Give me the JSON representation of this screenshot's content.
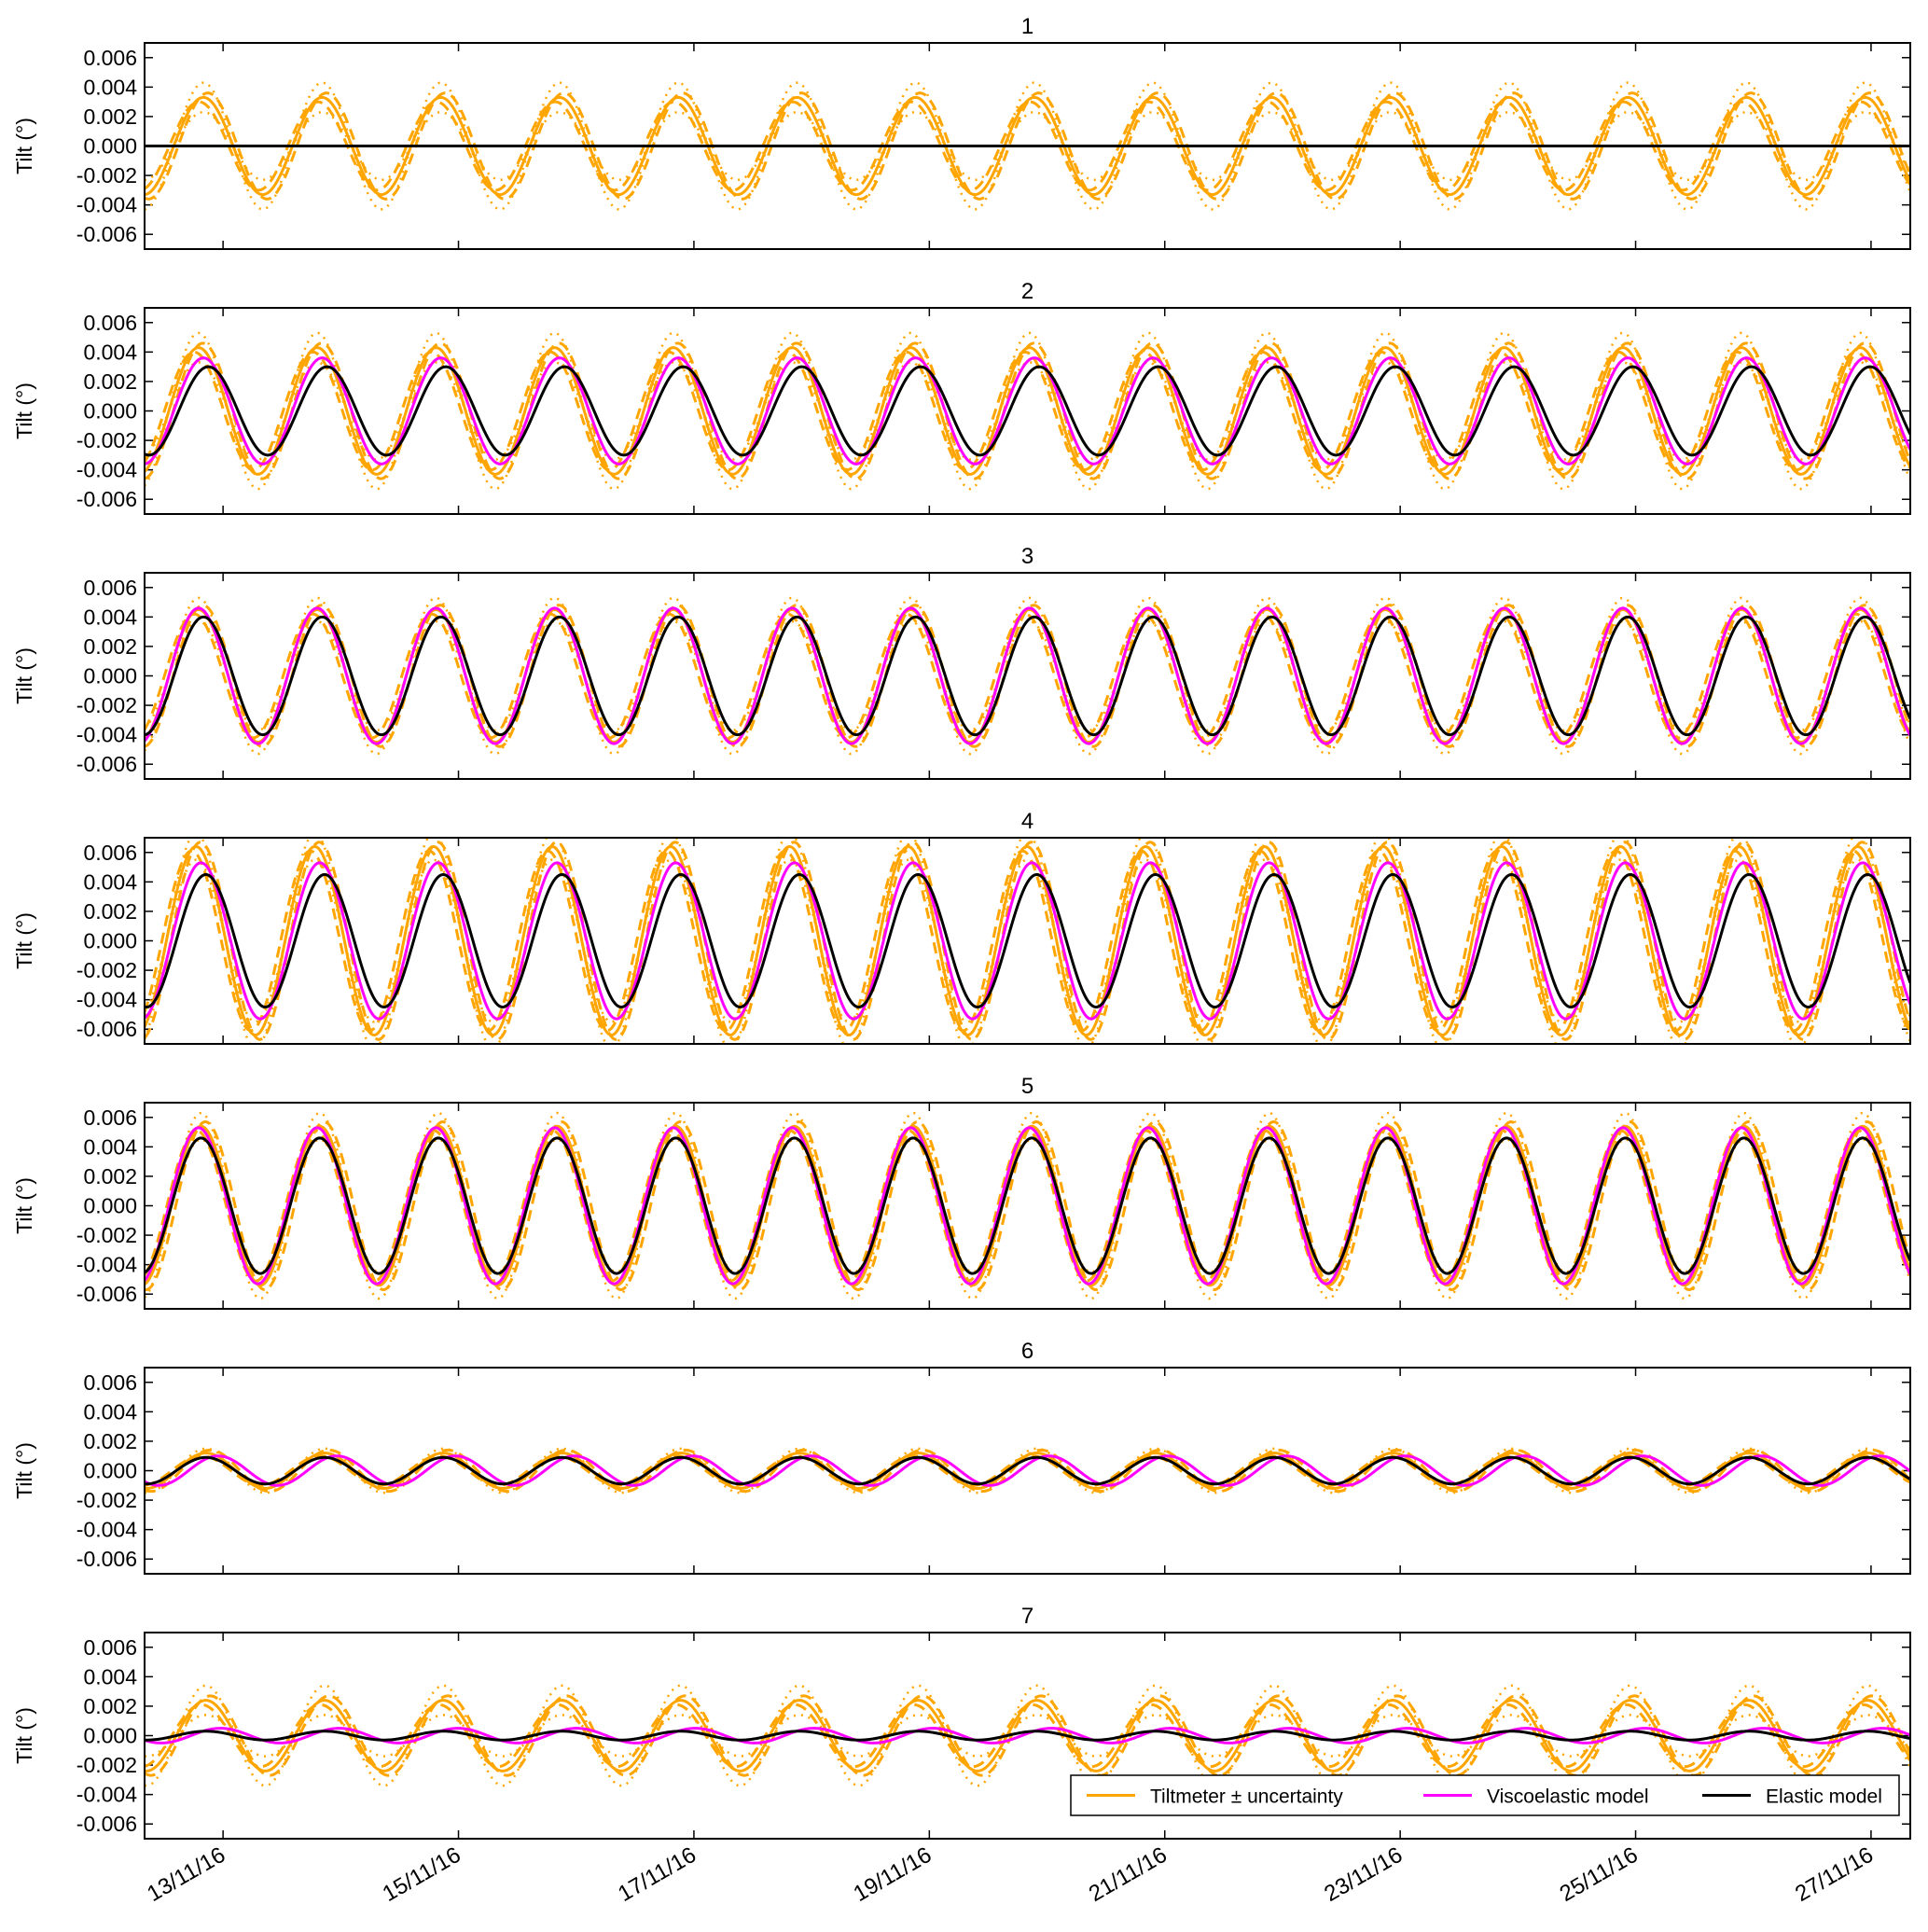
{
  "colors": {
    "tiltmeter": "#FFA500",
    "viscoelastic": "#FF00FF",
    "elastic": "#000000"
  },
  "legend": {
    "placement": "bottom-right of panel 7",
    "entries": [
      "Tiltmeter ± uncertainty",
      "Viscoelastic model",
      "Elastic model"
    ]
  },
  "xaxis": {
    "tick_labels": [
      "13/11/16",
      "15/11/16",
      "17/11/16",
      "19/11/16",
      "21/11/16",
      "23/11/16",
      "25/11/16",
      "27/11/16"
    ]
  },
  "chart_data": [
    {
      "type": "line",
      "title": "1",
      "ylabel": "Tilt (°)",
      "ylim": [
        -0.007,
        0.007
      ],
      "yticks": [
        "0.006",
        "0.004",
        "0.002",
        "0.000",
        "-0.002",
        "-0.004",
        "-0.006"
      ],
      "xlim": [
        "2016-11-12 08:00",
        "2016-11-27 08:00"
      ],
      "period_hours": 24.2,
      "series": [
        {
          "name": "Tiltmeter ± uncertainty",
          "amplitude": 0.0033,
          "uncertainty": [
            0.0003,
            0.001
          ],
          "peak_time": "2016-11-12 20:00"
        },
        {
          "name": "Elastic model",
          "amplitude": 0.0,
          "peak_time": "2016-11-12 20:00"
        }
      ]
    },
    {
      "type": "line",
      "title": "2",
      "ylabel": "Tilt (°)",
      "ylim": [
        -0.007,
        0.007
      ],
      "yticks": [
        "0.006",
        "0.004",
        "0.002",
        "0.000",
        "-0.002",
        "-0.004",
        "-0.006"
      ],
      "xlim": [
        "2016-11-12 08:00",
        "2016-11-27 08:00"
      ],
      "period_hours": 24.2,
      "series": [
        {
          "name": "Tiltmeter ± uncertainty",
          "amplitude": 0.0043,
          "uncertainty": [
            0.0003,
            0.001
          ],
          "peak_time": "2016-11-12 19:00"
        },
        {
          "name": "Viscoelastic model",
          "amplitude": 0.0036,
          "peak_time": "2016-11-12 20:00"
        },
        {
          "name": "Elastic model",
          "amplitude": 0.003,
          "peak_time": "2016-11-12 21:00"
        }
      ]
    },
    {
      "type": "line",
      "title": "3",
      "ylabel": "Tilt (°)",
      "ylim": [
        -0.007,
        0.007
      ],
      "yticks": [
        "0.006",
        "0.004",
        "0.002",
        "0.000",
        "-0.002",
        "-0.004",
        "-0.006"
      ],
      "xlim": [
        "2016-11-12 08:00",
        "2016-11-27 08:00"
      ],
      "period_hours": 24.2,
      "series": [
        {
          "name": "Tiltmeter ± uncertainty",
          "amplitude": 0.0045,
          "uncertainty": [
            0.0003,
            0.0008
          ],
          "peak_time": "2016-11-12 19:00"
        },
        {
          "name": "Viscoelastic model",
          "amplitude": 0.0046,
          "peak_time": "2016-11-12 19:00"
        },
        {
          "name": "Elastic model",
          "amplitude": 0.004,
          "peak_time": "2016-11-12 20:00"
        }
      ]
    },
    {
      "type": "line",
      "title": "4",
      "ylabel": "Tilt (°)",
      "ylim": [
        -0.007,
        0.007
      ],
      "yticks": [
        "0.006",
        "0.004",
        "0.002",
        "0.000",
        "-0.002",
        "-0.004",
        "-0.006"
      ],
      "xlim": [
        "2016-11-12 08:00",
        "2016-11-27 08:00"
      ],
      "period_hours": 24.2,
      "series": [
        {
          "name": "Tiltmeter ± uncertainty",
          "amplitude": 0.0064,
          "uncertainty": [
            0.0003,
            0.0009
          ],
          "peak_time": "2016-11-12 18:30"
        },
        {
          "name": "Viscoelastic model",
          "amplitude": 0.0053,
          "peak_time": "2016-11-12 19:30"
        },
        {
          "name": "Elastic model",
          "amplitude": 0.0045,
          "peak_time": "2016-11-12 20:30"
        }
      ]
    },
    {
      "type": "line",
      "title": "5",
      "ylabel": "Tilt (°)",
      "ylim": [
        -0.007,
        0.007
      ],
      "yticks": [
        "0.006",
        "0.004",
        "0.002",
        "0.000",
        "-0.002",
        "-0.004",
        "-0.006"
      ],
      "xlim": [
        "2016-11-12 08:00",
        "2016-11-27 08:00"
      ],
      "period_hours": 24.2,
      "series": [
        {
          "name": "Tiltmeter ± uncertainty",
          "amplitude": 0.0054,
          "uncertainty": [
            0.0003,
            0.0009
          ],
          "peak_time": "2016-11-12 19:30"
        },
        {
          "name": "Viscoelastic model",
          "amplitude": 0.0053,
          "peak_time": "2016-11-12 19:00"
        },
        {
          "name": "Elastic model",
          "amplitude": 0.0046,
          "peak_time": "2016-11-12 19:30"
        }
      ]
    },
    {
      "type": "line",
      "title": "6",
      "ylabel": "Tilt (°)",
      "ylim": [
        -0.007,
        0.007
      ],
      "yticks": [
        "0.006",
        "0.004",
        "0.002",
        "0.000",
        "-0.002",
        "-0.004",
        "-0.006"
      ],
      "xlim": [
        "2016-11-12 08:00",
        "2016-11-27 08:00"
      ],
      "period_hours": 24.2,
      "series": [
        {
          "name": "Tiltmeter ± uncertainty",
          "amplitude": 0.0012,
          "uncertainty": [
            0.0002,
            0.0003
          ],
          "peak_time": "2016-11-12 20:30"
        },
        {
          "name": "Viscoelastic model",
          "amplitude": 0.001,
          "peak_time": "2016-11-12 23:00"
        },
        {
          "name": "Elastic model",
          "amplitude": 0.0009,
          "peak_time": "2016-11-12 20:30"
        }
      ]
    },
    {
      "type": "line",
      "title": "7",
      "ylabel": "Tilt (°)",
      "ylim": [
        -0.007,
        0.007
      ],
      "yticks": [
        "0.006",
        "0.004",
        "0.002",
        "0.000",
        "-0.002",
        "-0.004",
        "-0.006"
      ],
      "xlim": [
        "2016-11-12 08:00",
        "2016-11-27 08:00"
      ],
      "period_hours": 24.2,
      "series": [
        {
          "name": "Tiltmeter ± uncertainty",
          "amplitude": 0.0024,
          "uncertainty": [
            0.0003,
            0.001
          ],
          "peak_time": "2016-11-12 20:30"
        },
        {
          "name": "Viscoelastic model",
          "amplitude": 0.0005,
          "peak_time": "2016-11-12 23:30"
        },
        {
          "name": "Elastic model",
          "amplitude": 0.0003,
          "peak_time": "2016-11-12 20:30"
        }
      ]
    }
  ]
}
